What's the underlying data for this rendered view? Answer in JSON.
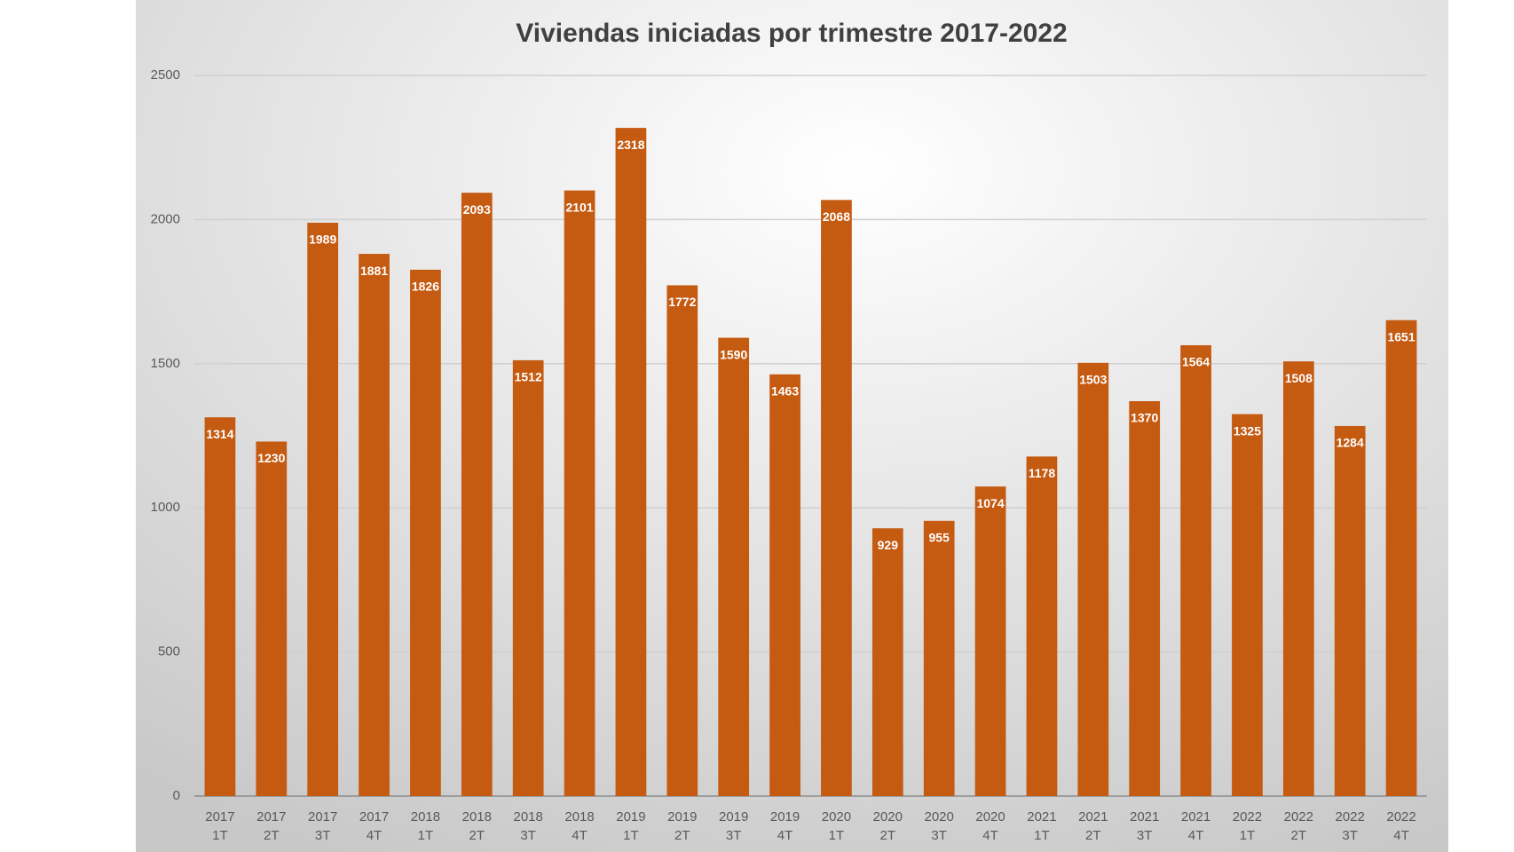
{
  "chart_data": {
    "type": "bar",
    "title": "Viviendas iniciadas por trimestre 2017-2022",
    "categories": [
      [
        "2017",
        "1T"
      ],
      [
        "2017",
        "2T"
      ],
      [
        "2017",
        "3T"
      ],
      [
        "2017",
        "4T"
      ],
      [
        "2018",
        "1T"
      ],
      [
        "2018",
        "2T"
      ],
      [
        "2018",
        "3T"
      ],
      [
        "2018",
        "4T"
      ],
      [
        "2019",
        "1T"
      ],
      [
        "2019",
        "2T"
      ],
      [
        "2019",
        "3T"
      ],
      [
        "2019",
        "4T"
      ],
      [
        "2020",
        "1T"
      ],
      [
        "2020",
        "2T"
      ],
      [
        "2020",
        "3T"
      ],
      [
        "2020",
        "4T"
      ],
      [
        "2021",
        "1T"
      ],
      [
        "2021",
        "2T"
      ],
      [
        "2021",
        "3T"
      ],
      [
        "2021",
        "4T"
      ],
      [
        "2022",
        "1T"
      ],
      [
        "2022",
        "2T"
      ],
      [
        "2022",
        "3T"
      ],
      [
        "2022",
        "4T"
      ]
    ],
    "values": [
      1314,
      1230,
      1989,
      1881,
      1826,
      2093,
      1512,
      2101,
      2318,
      1772,
      1590,
      1463,
      2068,
      929,
      955,
      1074,
      1178,
      1503,
      1370,
      1564,
      1325,
      1508,
      1284,
      1651
    ],
    "color": "#c55a11",
    "ylim": [
      0,
      2500
    ],
    "yticks": [
      0,
      500,
      1000,
      1500,
      2000,
      2500
    ],
    "grid": true
  }
}
